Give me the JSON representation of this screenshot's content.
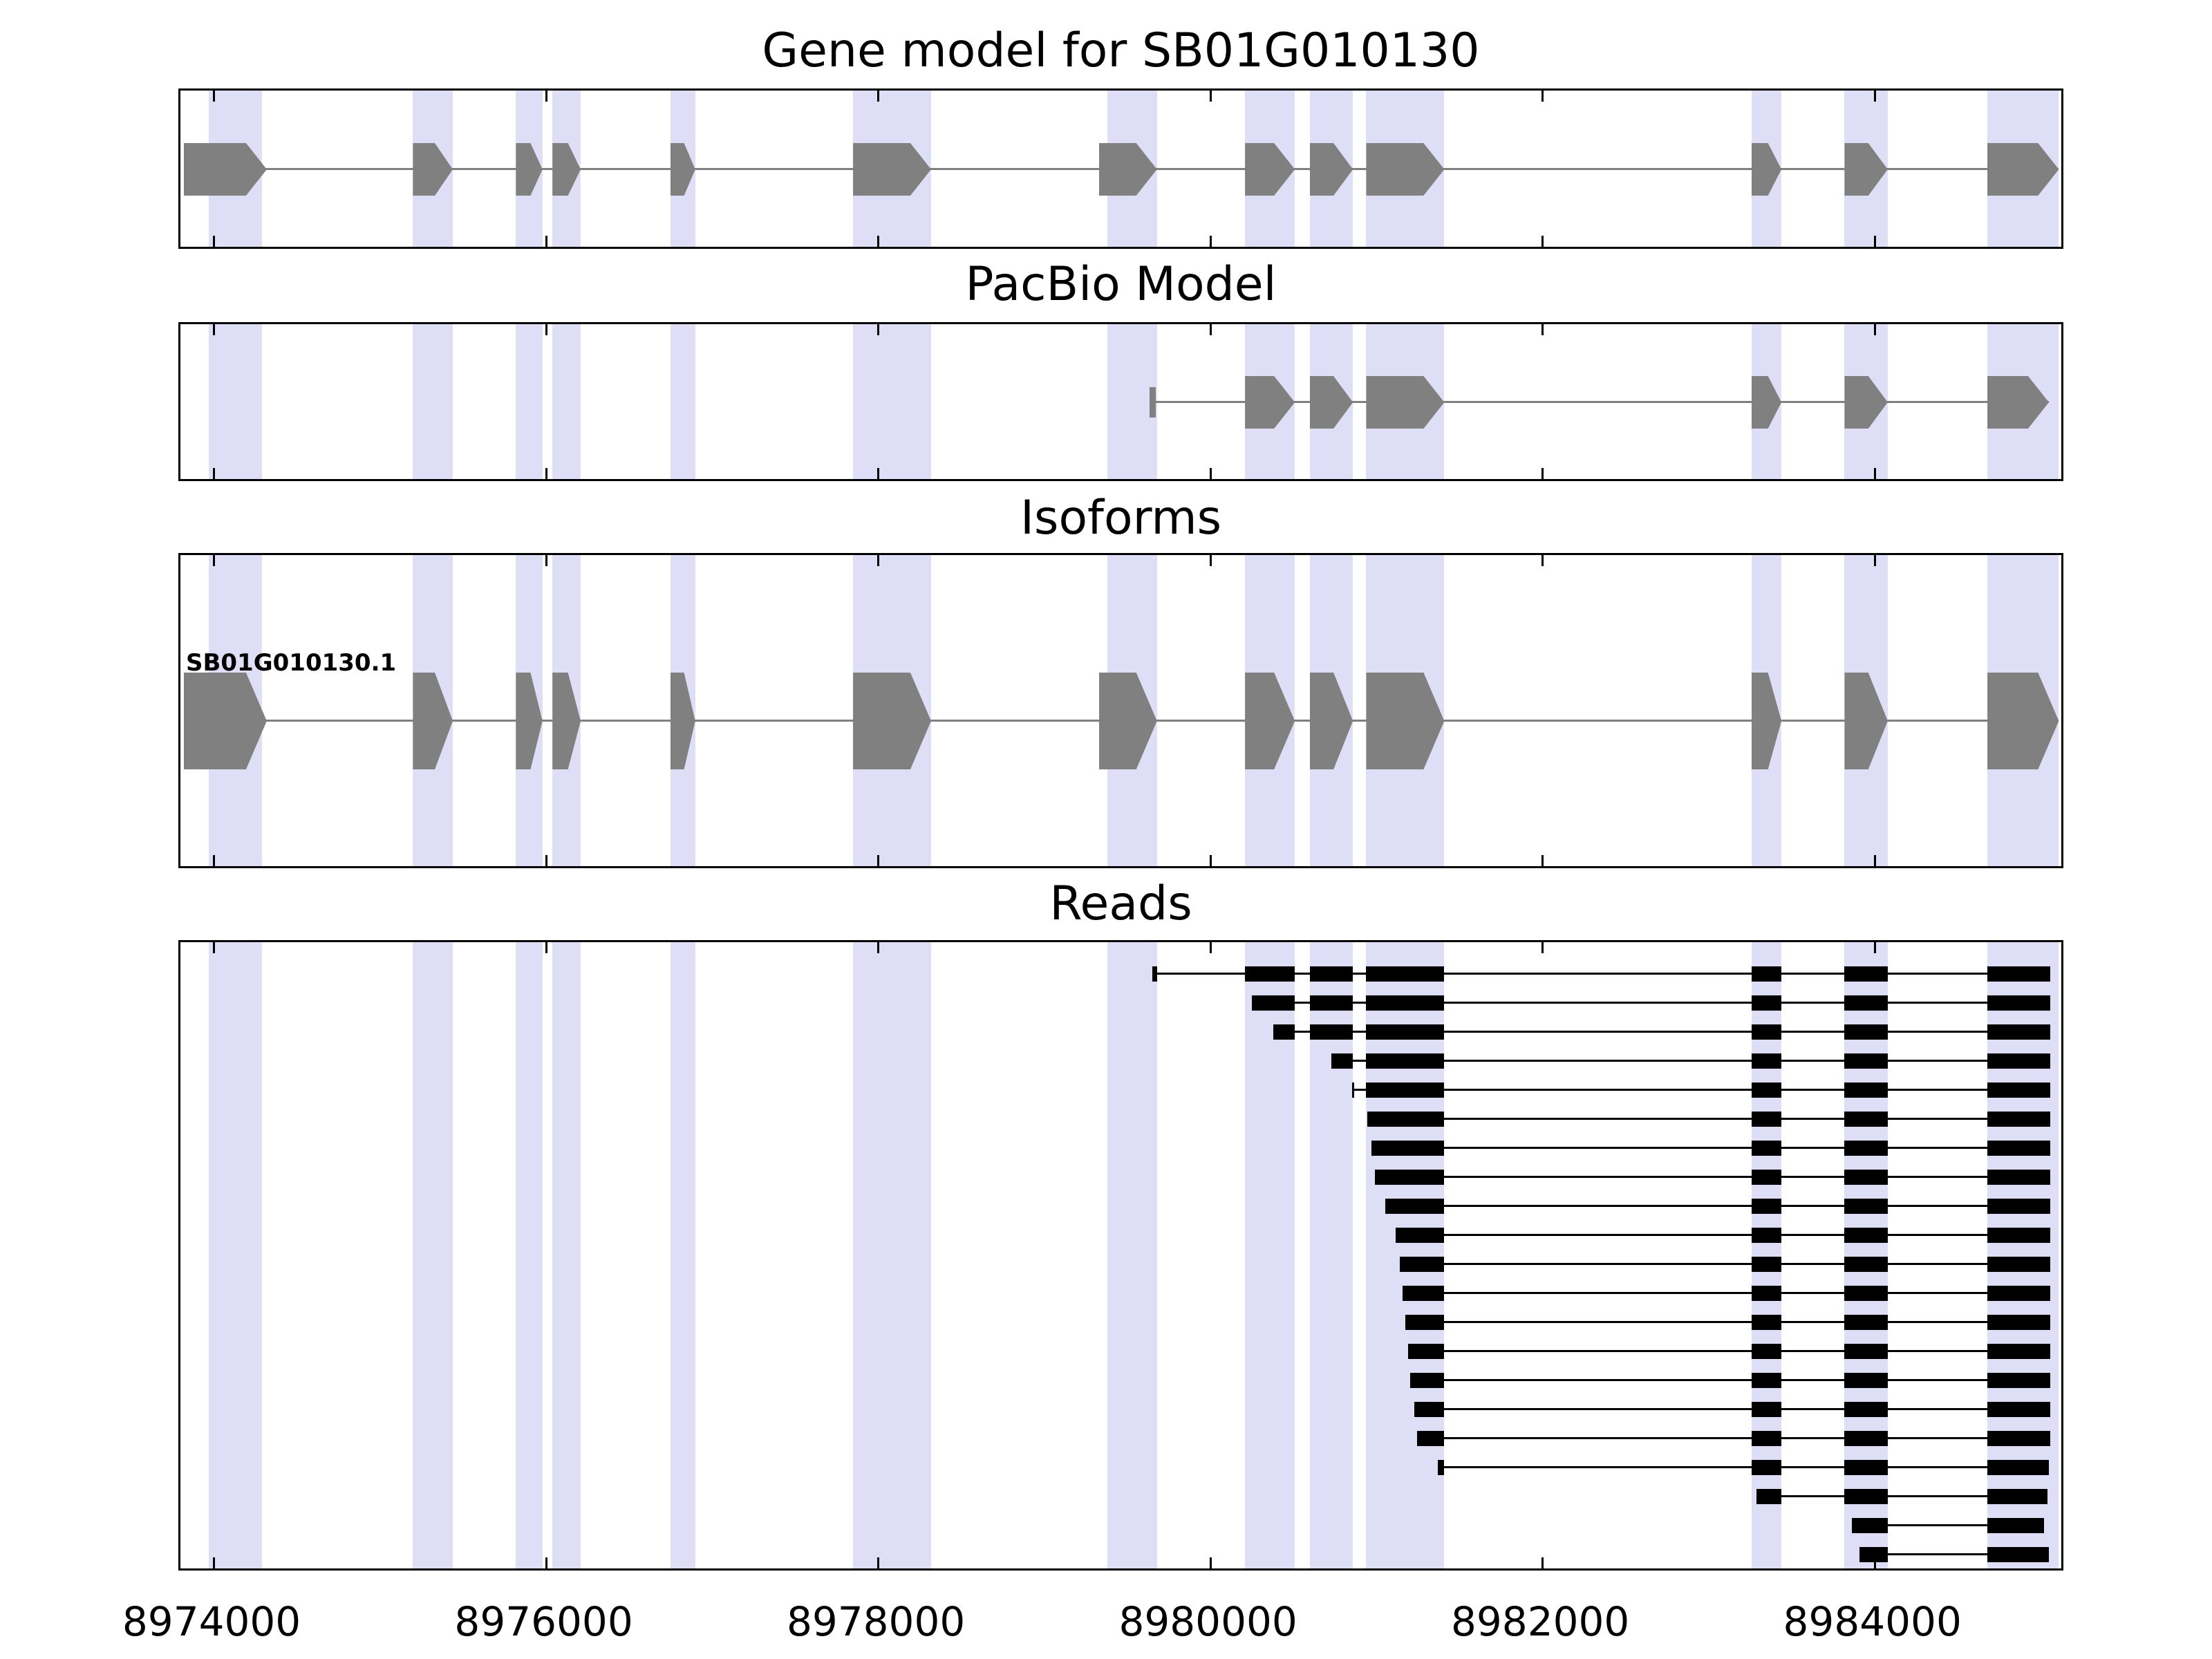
{
  "titles": {
    "gene_model": "Gene model for SB01G010130",
    "pacbio": "PacBio Model",
    "isoforms": "Isoforms",
    "reads": "Reads"
  },
  "colors": {
    "exon_fill": "#808080",
    "intron_line": "#808080",
    "highlight_band": "#dedef6",
    "read_fill": "#000000",
    "panel_border": "#000000",
    "text": "#000000",
    "background": "#ffffff"
  },
  "x_axis": {
    "tick_labels": [
      "8974000",
      "8976000",
      "8978000",
      "8980000",
      "8982000",
      "8984000"
    ]
  },
  "chart_data": {
    "type": "genome-annotation-tracks",
    "coordinate_range": [
      8973800,
      8985150
    ],
    "x_ticks": [
      8974000,
      8976000,
      8978000,
      8980000,
      8982000,
      8984000
    ],
    "tracks": [
      "Gene model for SB01G010130",
      "PacBio Model",
      "Isoforms",
      "Reads"
    ],
    "gene_model": {
      "name": "SB01G010130",
      "strand": "+",
      "line": [
        8973820,
        8985110
      ],
      "exons": [
        [
          8973820,
          8974320
        ],
        [
          8975200,
          8975440
        ],
        [
          8975820,
          8975980
        ],
        [
          8976040,
          8976210
        ],
        [
          8976750,
          8976900
        ],
        [
          8977850,
          8978320
        ],
        [
          8979330,
          8979680
        ],
        [
          8980210,
          8980510
        ],
        [
          8980600,
          8980860
        ],
        [
          8980940,
          8981410
        ],
        [
          8983260,
          8983440
        ],
        [
          8983820,
          8984080
        ],
        [
          8984680,
          8985110
        ]
      ]
    },
    "pacbio_model": {
      "start_marker": 8979650,
      "line": [
        8979650,
        8985050
      ],
      "exons": [
        [
          8980210,
          8980510
        ],
        [
          8980600,
          8980860
        ],
        [
          8980940,
          8981410
        ],
        [
          8983260,
          8983440
        ],
        [
          8983820,
          8984080
        ],
        [
          8984680,
          8985050
        ]
      ]
    },
    "isoforms": [
      {
        "label": "SB01G010130.1",
        "line": [
          8973820,
          8985110
        ],
        "exons": [
          [
            8973820,
            8974320
          ],
          [
            8975200,
            8975440
          ],
          [
            8975820,
            8975980
          ],
          [
            8976040,
            8976210
          ],
          [
            8976750,
            8976900
          ],
          [
            8977850,
            8978320
          ],
          [
            8979330,
            8979680
          ],
          [
            8980210,
            8980510
          ],
          [
            8980600,
            8980860
          ],
          [
            8980940,
            8981410
          ],
          [
            8983260,
            8983440
          ],
          [
            8983820,
            8984080
          ],
          [
            8984680,
            8985110
          ]
        ]
      }
    ],
    "highlight_regions": [
      [
        8973970,
        8974290
      ],
      [
        8975200,
        8975440
      ],
      [
        8975820,
        8975980
      ],
      [
        8976040,
        8976210
      ],
      [
        8976750,
        8976900
      ],
      [
        8977850,
        8978320
      ],
      [
        8979380,
        8979680
      ],
      [
        8980210,
        8980510
      ],
      [
        8980600,
        8980860
      ],
      [
        8980940,
        8981410
      ],
      [
        8983260,
        8983440
      ],
      [
        8983820,
        8984080
      ],
      [
        8984680,
        8985110
      ]
    ],
    "reads": [
      {
        "start": 8979650,
        "end": 8985060
      },
      {
        "start": 8980250,
        "end": 8985060
      },
      {
        "start": 8980380,
        "end": 8985060
      },
      {
        "start": 8980730,
        "end": 8985060
      },
      {
        "start": 8980855,
        "end": 8985060
      },
      {
        "start": 8980945,
        "end": 8985060
      },
      {
        "start": 8980970,
        "end": 8985060
      },
      {
        "start": 8980990,
        "end": 8985060
      },
      {
        "start": 8981055,
        "end": 8985060
      },
      {
        "start": 8981115,
        "end": 8985060
      },
      {
        "start": 8981140,
        "end": 8985060
      },
      {
        "start": 8981160,
        "end": 8985060
      },
      {
        "start": 8981175,
        "end": 8985060
      },
      {
        "start": 8981190,
        "end": 8985060
      },
      {
        "start": 8981205,
        "end": 8985060
      },
      {
        "start": 8981230,
        "end": 8985060
      },
      {
        "start": 8981245,
        "end": 8985060
      },
      {
        "start": 8981370,
        "end": 8985050
      },
      {
        "start": 8983290,
        "end": 8985040
      },
      {
        "start": 8983865,
        "end": 8985020
      },
      {
        "start": 8983910,
        "end": 8985050
      }
    ]
  }
}
